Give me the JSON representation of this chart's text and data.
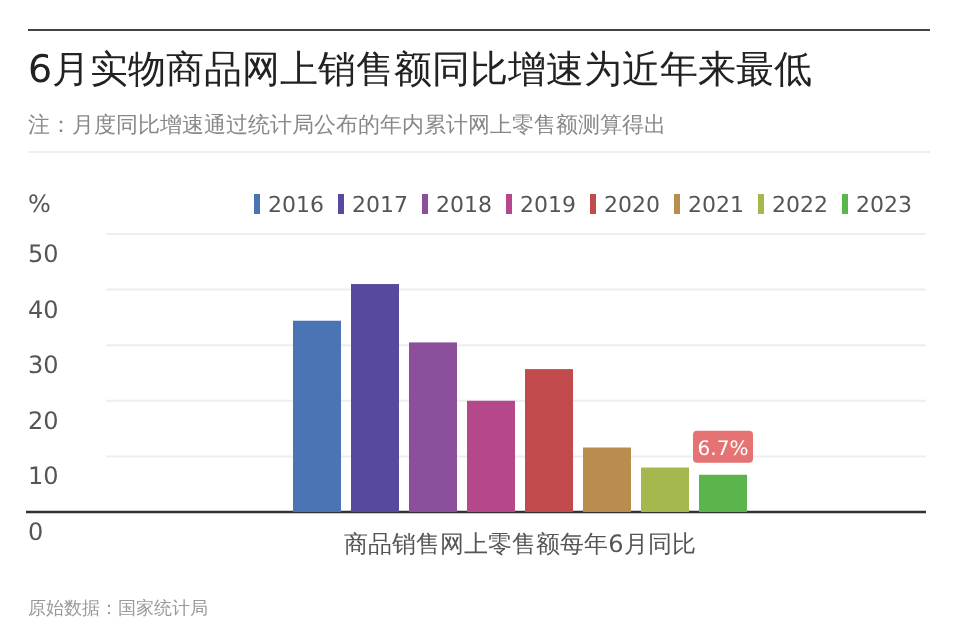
{
  "chart_data": {
    "type": "bar",
    "title": "6月实物商品网上销售额同比增速为近年来最低",
    "subtitle": "注：月度同比增速通过统计局公布的年内累计网上零售额测算得出",
    "ylabel": "%",
    "categories": [
      "商品销售网上零售额每年6月同比"
    ],
    "series": [
      {
        "name": "2016",
        "color": "#4a74b4",
        "values": [
          34.4
        ]
      },
      {
        "name": "2017",
        "color": "#574a9e",
        "values": [
          41.0
        ]
      },
      {
        "name": "2018",
        "color": "#8c4f9c",
        "values": [
          30.5
        ]
      },
      {
        "name": "2019",
        "color": "#b5488a",
        "values": [
          20.0
        ]
      },
      {
        "name": "2020",
        "color": "#c04a4c",
        "values": [
          25.7
        ]
      },
      {
        "name": "2021",
        "color": "#b98d4e",
        "values": [
          11.6
        ]
      },
      {
        "name": "2022",
        "color": "#a4b84e",
        "values": [
          8.0
        ]
      },
      {
        "name": "2023",
        "color": "#5bb54c",
        "values": [
          6.7
        ],
        "value_labels": [
          "6.7%"
        ]
      }
    ],
    "ylim": [
      0,
      50
    ],
    "yticks": [
      0,
      10,
      20,
      30,
      40,
      50
    ],
    "grid": "y",
    "legend": "top",
    "annotations": [
      "原始数据：国家统计局"
    ]
  }
}
